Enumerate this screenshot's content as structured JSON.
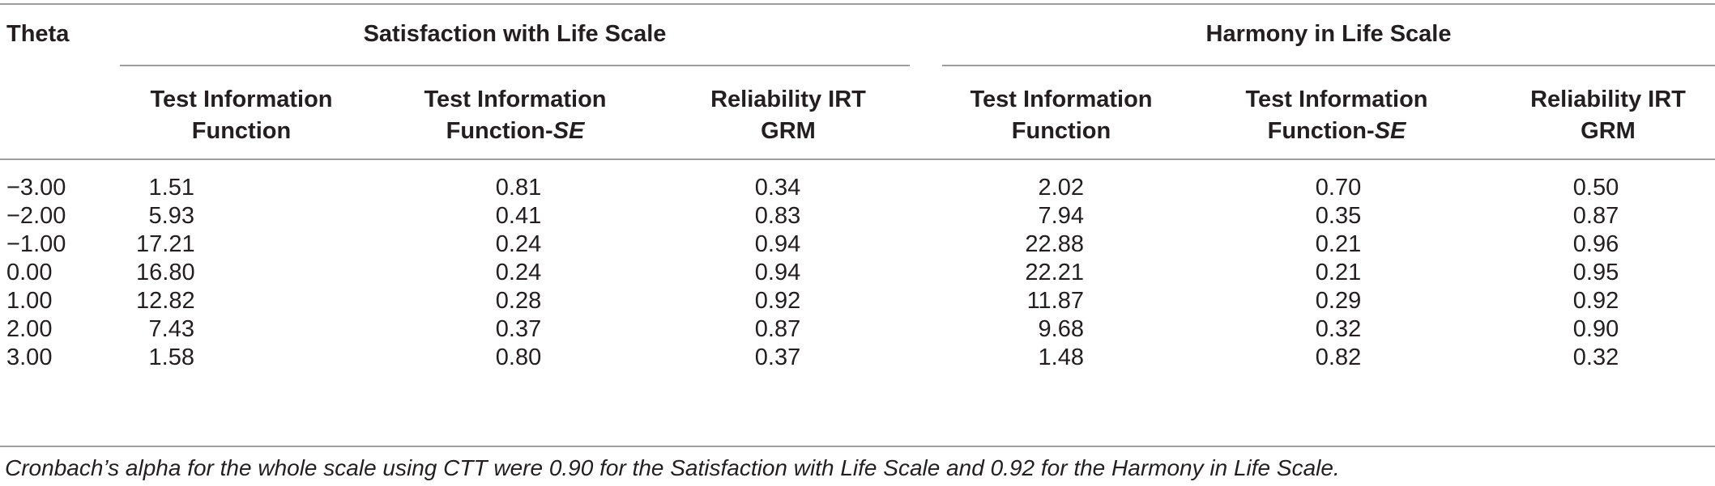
{
  "table": {
    "theta_header": "Theta",
    "groups": [
      {
        "label": "Satisfaction with Life Scale"
      },
      {
        "label": "Harmony in Life Scale"
      }
    ],
    "subheaders": [
      {
        "line1": "Test Information",
        "line2": "Function",
        "italic_suffix": ""
      },
      {
        "line1": "Test Information",
        "line2": "Function-",
        "italic_suffix": "SE"
      },
      {
        "line1": "Reliability IRT",
        "line2": "GRM",
        "italic_suffix": ""
      },
      {
        "line1": "Test Information",
        "line2": "Function",
        "italic_suffix": ""
      },
      {
        "line1": "Test Information",
        "line2": "Function-",
        "italic_suffix": "SE"
      },
      {
        "line1": "Reliability IRT",
        "line2": "GRM",
        "italic_suffix": ""
      }
    ],
    "rows": [
      {
        "theta": "−3.00",
        "values": [
          "1.51",
          "0.81",
          "0.34",
          "2.02",
          "0.70",
          "0.50"
        ]
      },
      {
        "theta": "−2.00",
        "values": [
          "5.93",
          "0.41",
          "0.83",
          "7.94",
          "0.35",
          "0.87"
        ]
      },
      {
        "theta": "−1.00",
        "values": [
          "17.21",
          "0.24",
          "0.94",
          "22.88",
          "0.21",
          "0.96"
        ]
      },
      {
        "theta": "0.00",
        "values": [
          "16.80",
          "0.24",
          "0.94",
          "22.21",
          "0.21",
          "0.95"
        ]
      },
      {
        "theta": "1.00",
        "values": [
          "12.82",
          "0.28",
          "0.92",
          "11.87",
          "0.29",
          "0.92"
        ]
      },
      {
        "theta": "2.00",
        "values": [
          "7.43",
          "0.37",
          "0.87",
          "9.68",
          "0.32",
          "0.90"
        ]
      },
      {
        "theta": "3.00",
        "values": [
          "1.58",
          "0.80",
          "0.37",
          "1.48",
          "0.82",
          "0.32"
        ]
      }
    ],
    "footnote": "Cronbach’s alpha for the whole scale using CTT were 0.90 for the Satisfaction with Life Scale and 0.92 for the Harmony in Life Scale."
  }
}
